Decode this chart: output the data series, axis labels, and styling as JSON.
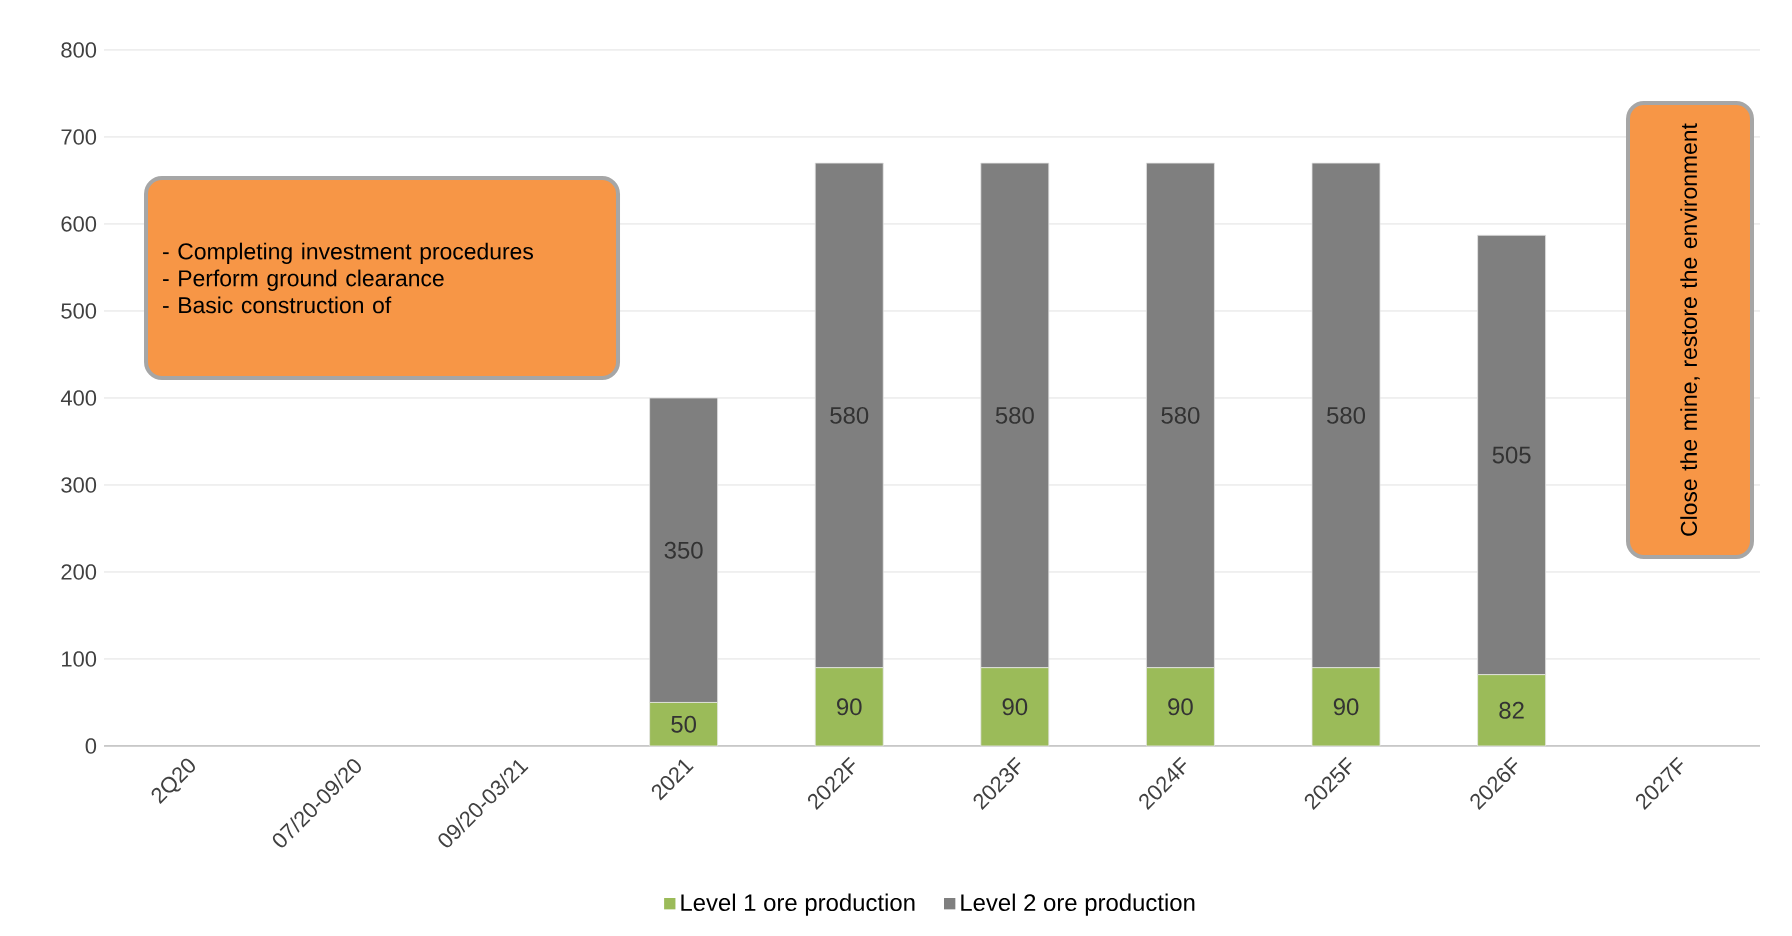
{
  "chart_data": {
    "type": "bar",
    "stacked": true,
    "categories": [
      "2Q20",
      "07/20-09/20",
      "09/20-03/21",
      "2021",
      "2022F",
      "2023F",
      "2024F",
      "2025F",
      "2026F",
      "2027F"
    ],
    "series": [
      {
        "name": "Level 1 ore production",
        "color": "#9bbb59",
        "values": [
          null,
          null,
          null,
          50,
          90,
          90,
          90,
          90,
          82,
          null
        ]
      },
      {
        "name": "Level 2 ore production",
        "color": "#7f7f7f",
        "values": [
          null,
          null,
          null,
          350,
          580,
          580,
          580,
          580,
          505,
          null
        ]
      }
    ],
    "ylim": [
      0,
      800
    ],
    "yticks": [
      0,
      100,
      200,
      300,
      400,
      500,
      600,
      700,
      800
    ],
    "grid": "y",
    "legend": "bottom",
    "data_labels": true,
    "annotations": [
      "- Completing investment procedures",
      "- Perform ground clearance",
      "- Basic construction of",
      "Close the mine, restore the environment"
    ]
  }
}
